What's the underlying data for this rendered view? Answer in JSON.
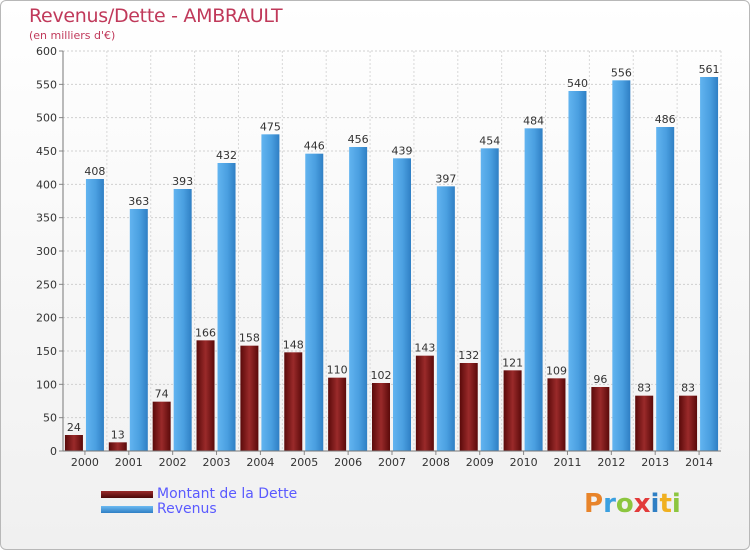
{
  "chart_data": {
    "type": "bar",
    "title": "Revenus/Dette - AMBRAULT",
    "subtitle": "(en milliers d'€)",
    "categories": [
      "2000",
      "2001",
      "2002",
      "2003",
      "2004",
      "2005",
      "2006",
      "2007",
      "2008",
      "2009",
      "2010",
      "2011",
      "2012",
      "2013",
      "2014"
    ],
    "series": [
      {
        "name": "Montant de la Dette",
        "color": "#7a1515",
        "values": [
          24,
          13,
          74,
          166,
          158,
          148,
          110,
          102,
          143,
          132,
          121,
          109,
          96,
          83,
          83
        ]
      },
      {
        "name": "Revenus",
        "color": "#4a9fe0",
        "values": [
          408,
          363,
          393,
          432,
          475,
          446,
          456,
          439,
          397,
          454,
          484,
          540,
          556,
          486,
          561
        ]
      }
    ],
    "y_ticks": [
      "0",
      "50",
      "100",
      "150",
      "200",
      "250",
      "300",
      "350",
      "400",
      "450",
      "500",
      "550",
      "600"
    ],
    "ylim": [
      0,
      600
    ],
    "grid": true,
    "legend_position": "bottom-left",
    "watermark": "Proxiti"
  }
}
